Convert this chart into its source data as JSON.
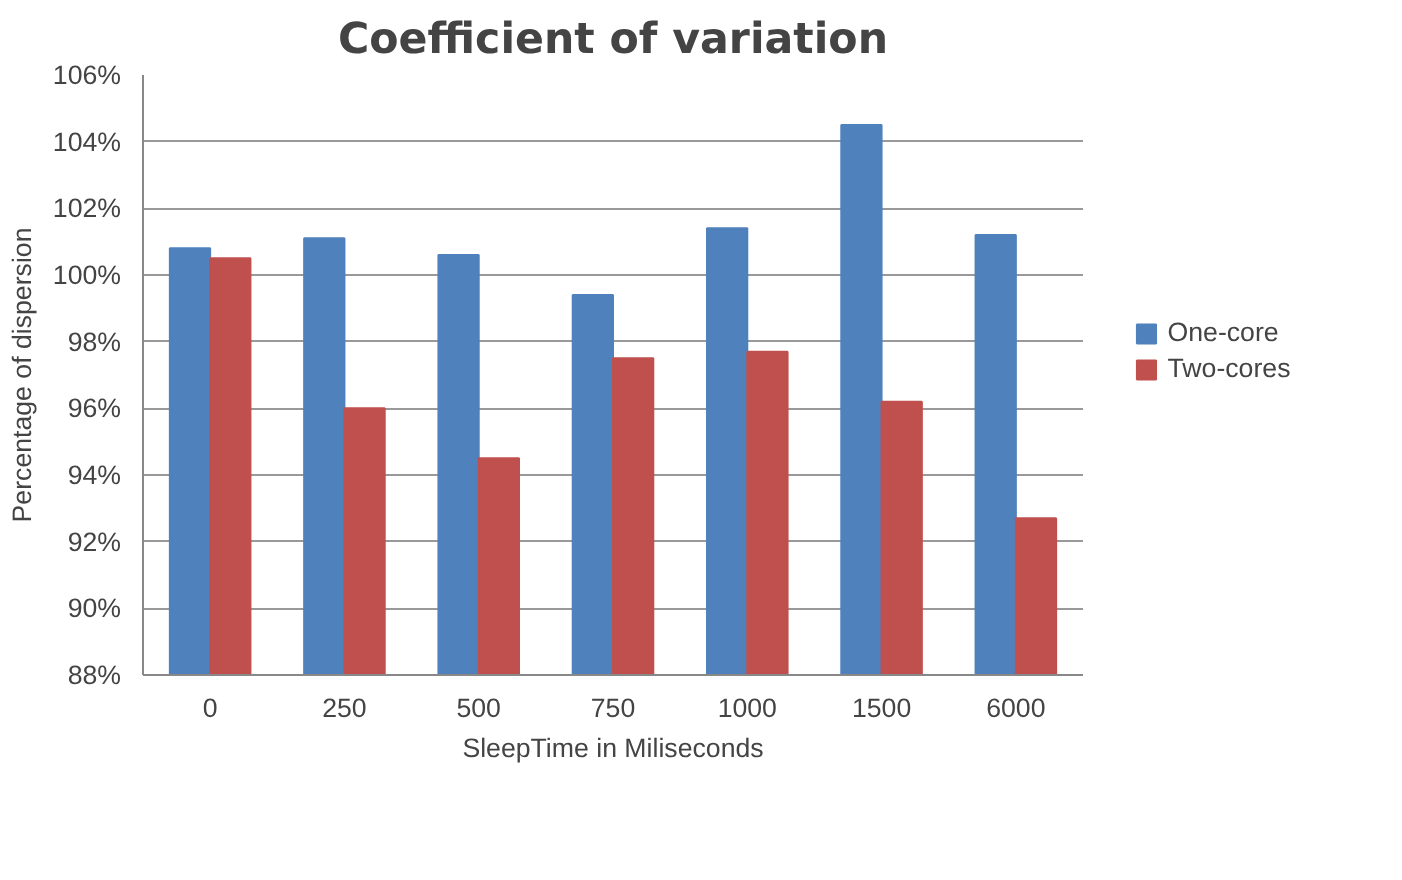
{
  "chart_data": {
    "type": "bar",
    "title": "Coefficient of variation",
    "xlabel": "SleepTime in Miliseconds",
    "ylabel": "Percentage of dispersion",
    "categories": [
      "0",
      "250",
      "500",
      "750",
      "1000",
      "1500",
      "6000"
    ],
    "series": [
      {
        "name": "One-core",
        "color": "#4f81bd",
        "values": [
          100.8,
          101.1,
          100.6,
          99.4,
          101.4,
          104.5,
          101.2
        ]
      },
      {
        "name": "Two-cores",
        "color": "#c0504d",
        "values": [
          100.5,
          96.0,
          94.5,
          97.5,
          97.7,
          96.2,
          92.7
        ]
      }
    ],
    "ylim": [
      88,
      106
    ],
    "yticks": [
      {
        "value": 88,
        "label": "88%"
      },
      {
        "value": 90,
        "label": "90%"
      },
      {
        "value": 92,
        "label": "92%"
      },
      {
        "value": 94,
        "label": "94%"
      },
      {
        "value": 96,
        "label": "96%"
      },
      {
        "value": 98,
        "label": "98%"
      },
      {
        "value": 100,
        "label": "100%"
      },
      {
        "value": 102,
        "label": "102%"
      },
      {
        "value": 104,
        "label": "104%"
      },
      {
        "value": 106,
        "label": "106%"
      }
    ],
    "grid": "y",
    "legend": "right"
  }
}
